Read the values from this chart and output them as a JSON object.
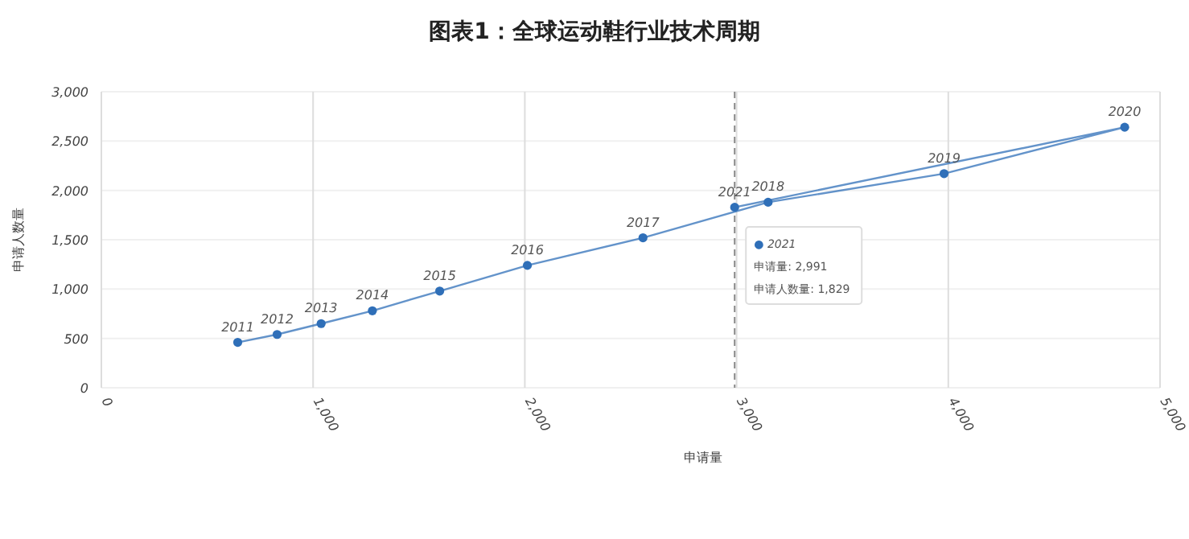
{
  "chart_data": {
    "type": "line",
    "title": "图表1：全球运动鞋行业技术周期",
    "xlabel": "申请量",
    "ylabel": "申请人数量",
    "series": [
      {
        "color": "#2f6fb8",
        "x": [
          644,
          830,
          1038,
          1280,
          1598,
          2012,
          2558,
          3149,
          3980,
          4833,
          2991
        ],
        "values": [
          460,
          540,
          650,
          780,
          980,
          1240,
          1520,
          1880,
          2170,
          2640,
          1829
        ]
      }
    ],
    "marker": "circle",
    "line_style": "solid",
    "grid": true,
    "xlim": [
      0,
      5000
    ],
    "xticks": [
      0,
      {
        "value": 1000,
        "label": "1,000"
      },
      {
        "value": 2000,
        "label": "2,000"
      },
      {
        "value": 3000,
        "label": "3,000"
      },
      {
        "value": 4000,
        "label": "4,000"
      },
      {
        "value": 5000,
        "label": "5,000"
      }
    ],
    "ylim": [
      0,
      3000
    ],
    "yticks": [
      0,
      500,
      {
        "value": 1000,
        "label": "1,000"
      },
      {
        "value": 1500,
        "label": "1,500"
      },
      {
        "value": 2000,
        "label": "2,000"
      },
      {
        "value": 2500,
        "label": "2,500"
      },
      {
        "value": 3000,
        "label": "3,000"
      }
    ],
    "ref_lines": [
      {
        "axis": "x",
        "value": 2991,
        "color": "#888888",
        "line_style": "dashed"
      }
    ],
    "annotations": [
      {
        "text": "2011",
        "x": 644,
        "y": 460
      },
      {
        "text": "2012",
        "x": 830,
        "y": 540
      },
      {
        "text": "2013",
        "x": 1038,
        "y": 650
      },
      {
        "text": "2014",
        "x": 1280,
        "y": 780
      },
      {
        "text": "2015",
        "x": 1598,
        "y": 980
      },
      {
        "text": "2016",
        "x": 2012,
        "y": 1240
      },
      {
        "text": "2017",
        "x": 2558,
        "y": 1520
      },
      {
        "text": "2018",
        "x": 3149,
        "y": 1880
      },
      {
        "text": "2019",
        "x": 3980,
        "y": 2170
      },
      {
        "text": "2020",
        "x": 4833,
        "y": 2640
      },
      {
        "text": "2021",
        "x": 2991,
        "y": 1829
      },
      "● 2021",
      "申请量: 2,991",
      "申请人数量: 1,829"
    ]
  }
}
